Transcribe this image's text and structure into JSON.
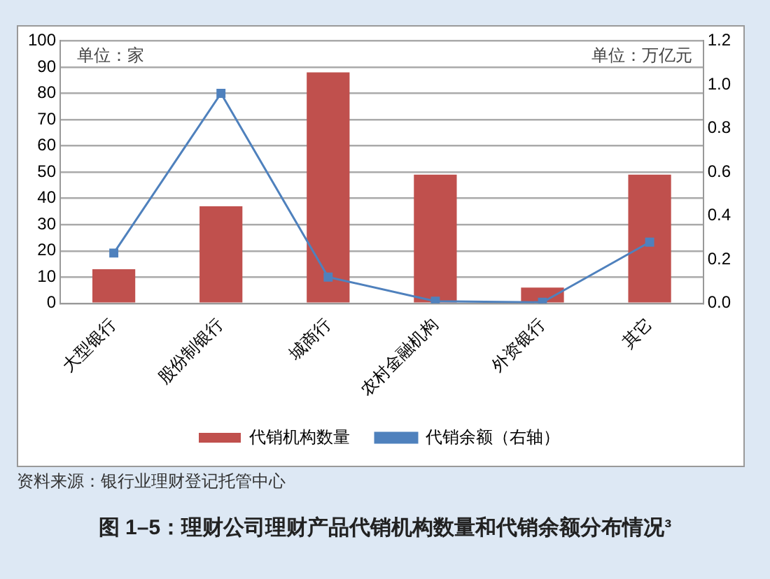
{
  "chart_data": {
    "type": "bar",
    "title": "图 1–5：理财公司理财产品代销机构数量和代销余额分布情况³",
    "categories": [
      "大型银行",
      "股份制银行",
      "城商行",
      "农村金融机构",
      "外资银行",
      "其它"
    ],
    "series": [
      {
        "name": "代销机构数量",
        "color": "#c0504d",
        "values": [
          13,
          37,
          88,
          49,
          6,
          49
        ]
      },
      {
        "name": "代销余额（右轴）",
        "type": "line",
        "axis": "y2",
        "marker": "square",
        "color": "#4f81bd",
        "values": [
          0.23,
          0.96,
          0.12,
          0.01,
          0.005,
          0.28
        ]
      }
    ],
    "ylim": [
      0,
      100
    ],
    "yticks": [
      0,
      10,
      20,
      30,
      40,
      50,
      60,
      70,
      80,
      90,
      100
    ],
    "y2lim": [
      0,
      1.2
    ],
    "y2ticks": [
      {
        "value": 0,
        "label": "0.0"
      },
      0.2,
      0.4,
      0.6,
      0.8,
      {
        "value": 1,
        "label": "1.0"
      },
      1.2
    ],
    "grid": "y",
    "legend": "bottom",
    "annotations": [
      "单位：家",
      "单位：万亿元",
      "资料来源：银行业理财登记托管中心"
    ]
  }
}
